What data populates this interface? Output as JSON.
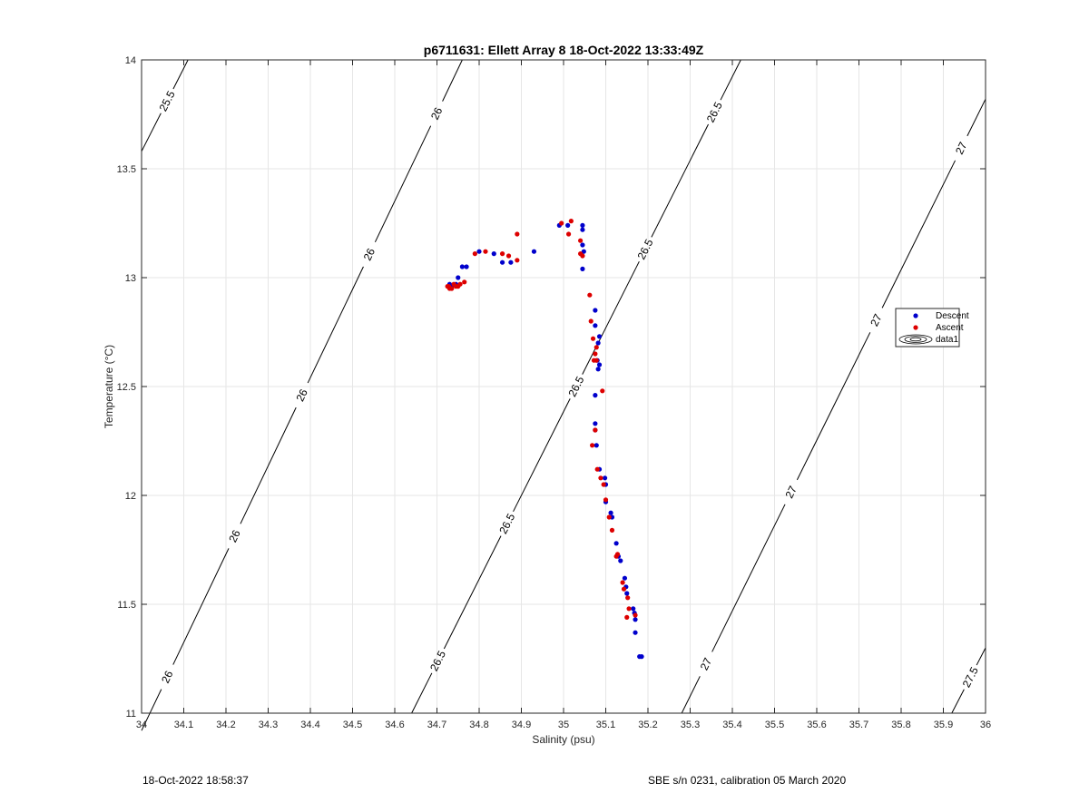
{
  "chart_data": {
    "type": "scatter",
    "title": "p6711631: Ellett Array 8 18-Oct-2022 13:33:49Z",
    "xlabel": "Salinity (psu)",
    "ylabel": "Temperature (°C)",
    "xlim": [
      34,
      36
    ],
    "ylim": [
      11,
      14
    ],
    "xticks": [
      "34",
      "34.1",
      "34.2",
      "34.3",
      "34.4",
      "34.5",
      "34.6",
      "34.7",
      "34.8",
      "34.9",
      "35",
      "35.1",
      "35.2",
      "35.3",
      "35.4",
      "35.5",
      "35.6",
      "35.7",
      "35.8",
      "35.9",
      "36"
    ],
    "yticks": [
      "11",
      "11.5",
      "12",
      "12.5",
      "13",
      "13.5",
      "14"
    ],
    "grid": true,
    "legend_position": "right",
    "legend": [
      "Descent",
      "Ascent",
      "data1"
    ],
    "series": [
      {
        "name": "Descent",
        "color": "#0000cc",
        "points": [
          [
            35.185,
            11.26
          ],
          [
            35.18,
            11.26
          ],
          [
            35.17,
            11.37
          ],
          [
            35.17,
            11.43
          ],
          [
            35.168,
            11.46
          ],
          [
            35.165,
            11.48
          ],
          [
            35.15,
            11.55
          ],
          [
            35.148,
            11.58
          ],
          [
            35.145,
            11.62
          ],
          [
            35.135,
            11.7
          ],
          [
            35.13,
            11.72
          ],
          [
            35.125,
            11.78
          ],
          [
            35.115,
            11.9
          ],
          [
            35.112,
            11.92
          ],
          [
            35.1,
            11.97
          ],
          [
            35.1,
            12.05
          ],
          [
            35.098,
            12.08
          ],
          [
            35.085,
            12.12
          ],
          [
            35.078,
            12.23
          ],
          [
            35.075,
            12.3
          ],
          [
            35.075,
            12.33
          ],
          [
            35.075,
            12.46
          ],
          [
            35.085,
            12.6
          ],
          [
            35.082,
            12.58
          ],
          [
            35.08,
            12.62
          ],
          [
            35.082,
            12.7
          ],
          [
            35.085,
            12.73
          ],
          [
            35.075,
            12.78
          ],
          [
            35.075,
            12.85
          ],
          [
            35.045,
            13.04
          ],
          [
            35.048,
            13.12
          ],
          [
            35.045,
            13.15
          ],
          [
            35.045,
            13.22
          ],
          [
            35.045,
            13.24
          ],
          [
            35.01,
            13.24
          ],
          [
            34.99,
            13.24
          ],
          [
            34.93,
            13.12
          ],
          [
            34.875,
            13.07
          ],
          [
            34.855,
            13.07
          ],
          [
            34.835,
            13.11
          ],
          [
            34.8,
            13.12
          ],
          [
            34.77,
            13.05
          ],
          [
            34.76,
            13.05
          ],
          [
            34.75,
            13.0
          ],
          [
            34.745,
            12.97
          ],
          [
            34.735,
            12.96
          ],
          [
            34.73,
            12.97
          ]
        ]
      },
      {
        "name": "Ascent",
        "color": "#dd0000",
        "points": [
          [
            35.17,
            11.45
          ],
          [
            35.155,
            11.48
          ],
          [
            35.15,
            11.44
          ],
          [
            35.152,
            11.53
          ],
          [
            35.14,
            11.6
          ],
          [
            35.143,
            11.57
          ],
          [
            35.128,
            11.73
          ],
          [
            35.125,
            11.72
          ],
          [
            35.115,
            11.84
          ],
          [
            35.108,
            11.9
          ],
          [
            35.1,
            11.98
          ],
          [
            35.095,
            12.05
          ],
          [
            35.088,
            12.08
          ],
          [
            35.08,
            12.12
          ],
          [
            35.068,
            12.23
          ],
          [
            35.075,
            12.3
          ],
          [
            35.092,
            12.48
          ],
          [
            35.072,
            12.62
          ],
          [
            35.075,
            12.65
          ],
          [
            35.078,
            12.62
          ],
          [
            35.078,
            12.68
          ],
          [
            35.07,
            12.72
          ],
          [
            35.065,
            12.8
          ],
          [
            35.062,
            12.92
          ],
          [
            35.04,
            13.11
          ],
          [
            35.045,
            13.1
          ],
          [
            35.04,
            13.17
          ],
          [
            35.012,
            13.2
          ],
          [
            35.018,
            13.26
          ],
          [
            34.995,
            13.25
          ],
          [
            34.89,
            13.2
          ],
          [
            34.89,
            13.08
          ],
          [
            34.87,
            13.1
          ],
          [
            34.855,
            13.11
          ],
          [
            34.815,
            13.12
          ],
          [
            34.79,
            13.11
          ],
          [
            34.765,
            12.98
          ],
          [
            34.755,
            12.97
          ],
          [
            34.75,
            12.96
          ],
          [
            34.745,
            12.96
          ],
          [
            34.74,
            12.97
          ],
          [
            34.735,
            12.95
          ],
          [
            34.73,
            12.95
          ],
          [
            34.728,
            12.96
          ],
          [
            34.725,
            12.96
          ]
        ]
      }
    ],
    "contours": [
      {
        "level": 25.5,
        "line": [
          [
            34.0,
            13.58
          ],
          [
            34.11,
            14.0
          ]
        ],
        "labels": [
          "25.5"
        ]
      },
      {
        "level": 26.0,
        "line": [
          [
            34.0,
            10.92
          ],
          [
            34.76,
            14.0
          ]
        ],
        "labels": [
          "26",
          "26",
          "26",
          "26",
          "26"
        ]
      },
      {
        "level": 26.5,
        "line": [
          [
            34.64,
            11.0
          ],
          [
            35.42,
            14.0
          ]
        ],
        "labels": [
          "26.5",
          "26.5",
          "26.5",
          "26.5",
          "26.5"
        ]
      },
      {
        "level": 27.0,
        "line": [
          [
            35.28,
            11.0
          ],
          [
            36.0,
            13.82
          ]
        ],
        "labels": [
          "27",
          "27",
          "27",
          "27"
        ]
      },
      {
        "level": 27.5,
        "line": [
          [
            35.92,
            11.0
          ],
          [
            36.0,
            11.3
          ]
        ],
        "labels": [
          "27.5"
        ]
      }
    ]
  },
  "footer": {
    "left": "18-Oct-2022 18:58:37",
    "right": "SBE s/n 0231, calibration 05 March 2020"
  }
}
